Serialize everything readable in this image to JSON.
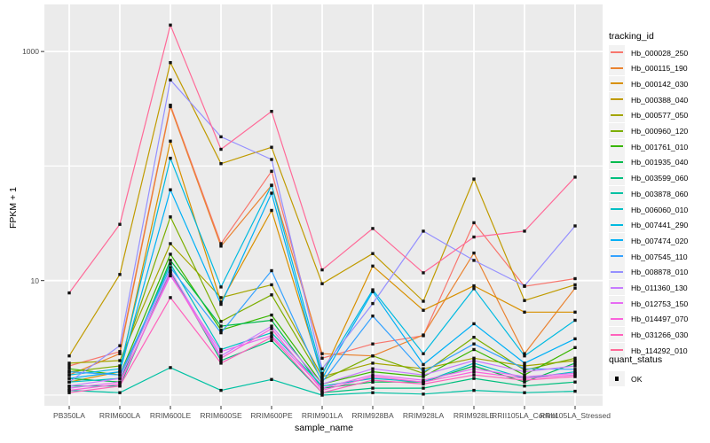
{
  "chart_data": {
    "type": "line",
    "title": "",
    "xlabel": "sample_name",
    "ylabel": "FPKM + 1",
    "y_scale": "log10",
    "ylim": [
      0.807,
      2576
    ],
    "y_ticks": [
      10,
      1000
    ],
    "y_tick_labels": [
      "10",
      "1000"
    ],
    "y_minor_gridlines": [
      1,
      100
    ],
    "grid": true,
    "legend_position": "right",
    "legend_title": "tracking_id",
    "quant_legend": {
      "title": "quant_status",
      "entry": "OK"
    },
    "panel_bg": "#EBEBEB",
    "grid_color": "#FFFFFF",
    "point_color": "#111111",
    "tick_color": "#333333",
    "categories": [
      "PB350LA",
      "RRIM600LA",
      "RRIM600LE",
      "RRIM600SE",
      "RRIM600PE",
      "RRIM901LA",
      "RRIM928BA",
      "RRIM928LA",
      "RRIM928LE",
      "RRII105LA_Control",
      "RRII105LA_Stressed"
    ],
    "series": [
      {
        "name": "Hb_000028_250",
        "color": "#F8766D",
        "values": [
          1.8,
          2.4,
          340,
          21,
          90,
          2.1,
          2.8,
          3.3,
          32,
          8.9,
          10.4
        ]
      },
      {
        "name": "Hb_000115_190",
        "color": "#EA8331",
        "values": [
          1.5,
          2.3,
          330,
          20,
          68,
          2.3,
          2.2,
          3.35,
          17.4,
          2.3,
          8.6
        ]
      },
      {
        "name": "Hb_000142_030",
        "color": "#D89000",
        "values": [
          1.3,
          1.6,
          165,
          6.5,
          41,
          1.5,
          13.4,
          5.5,
          9.0,
          5.3,
          5.3
        ]
      },
      {
        "name": "Hb_000388_040",
        "color": "#C09B00",
        "values": [
          2.2,
          11.3,
          800,
          105,
          146,
          9.4,
          17.2,
          6.6,
          77,
          6.7,
          9.2
        ]
      },
      {
        "name": "Hb_000577_050",
        "color": "#A3A500",
        "values": [
          1.9,
          2.0,
          21,
          7.1,
          9.2,
          1.45,
          1.9,
          1.7,
          2.1,
          1.8,
          2.0
        ]
      },
      {
        "name": "Hb_000960_120",
        "color": "#7CAE00",
        "values": [
          1.6,
          1.8,
          36,
          4.4,
          7.5,
          1.35,
          2.2,
          1.55,
          3.2,
          1.65,
          2.1
        ]
      },
      {
        "name": "Hb_001761_010",
        "color": "#39B600",
        "values": [
          1.7,
          1.5,
          17,
          3.7,
          5.0,
          1.25,
          1.6,
          1.45,
          2.5,
          1.5,
          2.6
        ]
      },
      {
        "name": "Hb_001935_040",
        "color": "#00BB4E",
        "values": [
          1.4,
          1.3,
          15,
          4.0,
          4.5,
          1.15,
          1.3,
          1.3,
          1.8,
          1.3,
          1.9
        ]
      },
      {
        "name": "Hb_003599_060",
        "color": "#00BF7D",
        "values": [
          1.2,
          1.2,
          12,
          2.0,
          3.0,
          1.05,
          1.15,
          1.15,
          1.4,
          1.2,
          1.3
        ]
      },
      {
        "name": "Hb_003878_060",
        "color": "#00C1A3",
        "values": [
          1.1,
          1.05,
          1.74,
          1.1,
          1.37,
          1.0,
          1.05,
          1.02,
          1.1,
          1.05,
          1.08
        ]
      },
      {
        "name": "Hb_006060_010",
        "color": "#00BFC4",
        "values": [
          1.3,
          1.4,
          14,
          2.5,
          3.5,
          1.2,
          1.4,
          1.3,
          1.9,
          1.4,
          1.6
        ]
      },
      {
        "name": "Hb_007441_290",
        "color": "#00BAE0",
        "values": [
          1.5,
          1.7,
          117,
          8.8,
          68,
          1.55,
          8.3,
          2.3,
          8.5,
          2.2,
          4.5
        ]
      },
      {
        "name": "Hb_007474_020",
        "color": "#00B0F6",
        "values": [
          1.4,
          1.6,
          62,
          6.2,
          58,
          1.4,
          8.0,
          1.85,
          4.2,
          1.9,
          3.1
        ]
      },
      {
        "name": "Hb_007545_110",
        "color": "#35A2FF",
        "values": [
          1.6,
          1.5,
          13,
          3.5,
          12.2,
          1.3,
          4.9,
          1.6,
          2.8,
          1.7,
          1.68
        ]
      },
      {
        "name": "Hb_008878_010",
        "color": "#9590FF",
        "values": [
          1.3,
          2.7,
          565,
          180,
          114,
          1.7,
          6.3,
          27,
          15,
          9.0,
          30
        ]
      },
      {
        "name": "Hb_011360_130",
        "color": "#C77CFF",
        "values": [
          1.2,
          1.4,
          12.2,
          2.2,
          4.0,
          1.25,
          1.7,
          1.5,
          2.0,
          1.6,
          1.8
        ]
      },
      {
        "name": "Hb_012753_150",
        "color": "#E76BF3",
        "values": [
          1.15,
          1.3,
          11,
          2.4,
          3.3,
          1.15,
          1.5,
          1.35,
          1.7,
          1.45,
          1.55
        ]
      },
      {
        "name": "Hb_014497_070",
        "color": "#FA62DB",
        "values": [
          1.1,
          1.25,
          11.5,
          2.1,
          3.8,
          1.1,
          1.45,
          1.3,
          1.6,
          1.4,
          1.5
        ]
      },
      {
        "name": "Hb_031266_030",
        "color": "#FF62BC",
        "values": [
          1.05,
          1.2,
          7.1,
          1.9,
          3.2,
          1.05,
          1.35,
          1.25,
          1.5,
          1.35,
          1.45
        ]
      },
      {
        "name": "Hb_114292_010",
        "color": "#FF6A98",
        "values": [
          7.8,
          31,
          1700,
          140,
          300,
          12.4,
          28.5,
          11.7,
          24,
          27,
          80
        ]
      }
    ]
  }
}
